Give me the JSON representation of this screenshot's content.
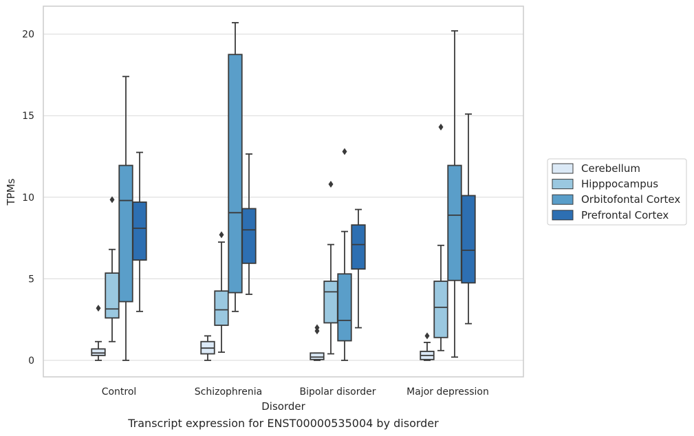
{
  "caption": "Transcript expression for ENST00000535004 by disorder",
  "chart_data": {
    "type": "box",
    "xlabel": "Disorder",
    "ylabel": "TPMs",
    "ylim": [
      -1,
      21.8
    ],
    "yticks": [
      0,
      5,
      10,
      15,
      20
    ],
    "grid": "horizontal",
    "legend_position": "right, outside plot",
    "categories": [
      "Control",
      "Schizophrenia",
      "Bipolar disorder",
      "Major depression"
    ],
    "series": [
      {
        "name": "Cerebellum",
        "color": "#dbe9f6",
        "boxes": [
          {
            "whislo": 0.0,
            "q1": 0.3,
            "med": 0.45,
            "q3": 0.7,
            "whishi": 1.15,
            "fliers": [
              3.2
            ]
          },
          {
            "whislo": 0.0,
            "q1": 0.4,
            "med": 0.75,
            "q3": 1.15,
            "whishi": 1.5,
            "fliers": []
          },
          {
            "whislo": 0.0,
            "q1": 0.05,
            "med": 0.2,
            "q3": 0.45,
            "whishi": 0.45,
            "fliers": [
              1.8,
              2.0
            ]
          },
          {
            "whislo": 0.0,
            "q1": 0.05,
            "med": 0.3,
            "q3": 0.55,
            "whishi": 1.1,
            "fliers": [
              1.5
            ]
          }
        ]
      },
      {
        "name": "Hipppocampus",
        "color": "#9ac8e0",
        "boxes": [
          {
            "whislo": 1.15,
            "q1": 2.6,
            "med": 3.15,
            "q3": 5.35,
            "whishi": 6.8,
            "fliers": [
              9.85
            ]
          },
          {
            "whislo": 0.5,
            "q1": 2.15,
            "med": 3.1,
            "q3": 4.25,
            "whishi": 7.25,
            "fliers": [
              7.7
            ]
          },
          {
            "whislo": 0.4,
            "q1": 2.3,
            "med": 4.2,
            "q3": 4.85,
            "whishi": 7.1,
            "fliers": [
              10.8
            ]
          },
          {
            "whislo": 0.6,
            "q1": 1.4,
            "med": 3.25,
            "q3": 4.85,
            "whishi": 7.05,
            "fliers": [
              14.3
            ]
          }
        ]
      },
      {
        "name": "Orbitofontal Cortex",
        "color": "#5a9ec9",
        "boxes": [
          {
            "whislo": 0.0,
            "q1": 3.6,
            "med": 9.8,
            "q3": 11.95,
            "whishi": 17.4,
            "fliers": []
          },
          {
            "whislo": 3.0,
            "q1": 4.15,
            "med": 9.05,
            "q3": 18.75,
            "whishi": 20.7,
            "fliers": []
          },
          {
            "whislo": 0.0,
            "q1": 1.2,
            "med": 2.45,
            "q3": 5.3,
            "whishi": 7.9,
            "fliers": [
              12.8
            ]
          },
          {
            "whislo": 0.2,
            "q1": 4.9,
            "med": 8.9,
            "q3": 11.95,
            "whishi": 20.2,
            "fliers": []
          }
        ]
      },
      {
        "name": "Prefrontal Cortex",
        "color": "#2d6fb2",
        "boxes": [
          {
            "whislo": 3.0,
            "q1": 6.15,
            "med": 8.1,
            "q3": 9.7,
            "whishi": 12.75,
            "fliers": []
          },
          {
            "whislo": 4.05,
            "q1": 5.95,
            "med": 8.0,
            "q3": 9.3,
            "whishi": 12.65,
            "fliers": []
          },
          {
            "whislo": 2.0,
            "q1": 5.6,
            "med": 7.1,
            "q3": 8.3,
            "whishi": 9.25,
            "fliers": []
          },
          {
            "whislo": 2.25,
            "q1": 4.75,
            "med": 6.75,
            "q3": 10.1,
            "whishi": 15.1,
            "fliers": []
          }
        ]
      }
    ]
  }
}
